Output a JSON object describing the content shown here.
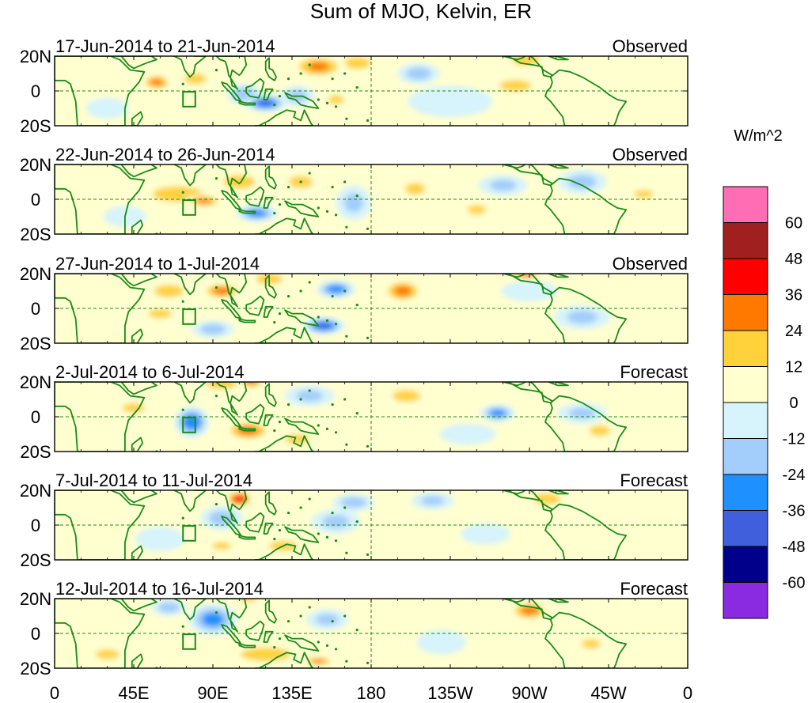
{
  "title": "Sum of MJO, Kelvin, ER",
  "units": "W/m^2",
  "colors": {
    "coast": "#1a8a1a",
    "frame": "#000000",
    "bins": [
      "#8a2be2",
      "#00008b",
      "#3f5fdc",
      "#1e90ff",
      "#a3cdfa",
      "#d7f3fb",
      "#ffffd0",
      "#ffd23c",
      "#ff7800",
      "#ff0000",
      "#a0201f",
      "#ff6eb4"
    ]
  },
  "colorbar": {
    "labels": [
      "60",
      "48",
      "36",
      "24",
      "12",
      "0",
      "-12",
      "-24",
      "-36",
      "-48",
      "-60"
    ]
  },
  "axes": {
    "lat_labels": [
      "20N",
      "0",
      "20S"
    ],
    "lon_labels": [
      "0",
      "45E",
      "90E",
      "135E",
      "180",
      "135W",
      "90W",
      "45W",
      "0"
    ],
    "lon_values": [
      0,
      45,
      90,
      135,
      180,
      225,
      270,
      315,
      360
    ]
  },
  "panels": [
    {
      "period": "17-Jun-2014 to 21-Jun-2014",
      "kind": "Observed",
      "features": [
        {
          "lon": 58,
          "lat": 5,
          "v": 28,
          "rx": 9,
          "ry": 5
        },
        {
          "lon": 80,
          "lat": 7,
          "v": 20,
          "rx": 10,
          "ry": 5
        },
        {
          "lon": 120,
          "lat": -7,
          "v": -40,
          "rx": 12,
          "ry": 5
        },
        {
          "lon": 108,
          "lat": -2,
          "v": -24,
          "rx": 10,
          "ry": 6
        },
        {
          "lon": 150,
          "lat": 14,
          "v": 26,
          "rx": 16,
          "ry": 7
        },
        {
          "lon": 172,
          "lat": 16,
          "v": 16,
          "rx": 14,
          "ry": 6
        },
        {
          "lon": 207,
          "lat": 10,
          "v": -18,
          "rx": 12,
          "ry": 6
        },
        {
          "lon": 268,
          "lat": 18,
          "v": 24,
          "rx": 12,
          "ry": 5
        },
        {
          "lon": 262,
          "lat": 3,
          "v": 22,
          "rx": 14,
          "ry": 5
        },
        {
          "lon": 138,
          "lat": -3,
          "v": -16,
          "rx": 10,
          "ry": 6
        },
        {
          "lon": 225,
          "lat": -6,
          "v": -10,
          "rx": 24,
          "ry": 9
        },
        {
          "lon": 160,
          "lat": -5,
          "v": 14,
          "rx": 8,
          "ry": 5
        },
        {
          "lon": 30,
          "lat": -10,
          "v": -12,
          "rx": 12,
          "ry": 6
        }
      ]
    },
    {
      "period": "22-Jun-2014 to 26-Jun-2014",
      "kind": "Observed",
      "features": [
        {
          "lon": 70,
          "lat": 3,
          "v": 22,
          "rx": 22,
          "ry": 7
        },
        {
          "lon": 85,
          "lat": -1,
          "v": 26,
          "rx": 11,
          "ry": 4
        },
        {
          "lon": 115,
          "lat": -8,
          "v": -30,
          "rx": 12,
          "ry": 5
        },
        {
          "lon": 105,
          "lat": 10,
          "v": 22,
          "rx": 14,
          "ry": 6
        },
        {
          "lon": 140,
          "lat": 10,
          "v": 16,
          "rx": 12,
          "ry": 6
        },
        {
          "lon": 170,
          "lat": -2,
          "v": -14,
          "rx": 10,
          "ry": 10
        },
        {
          "lon": 205,
          "lat": 6,
          "v": 16,
          "rx": 10,
          "ry": 6
        },
        {
          "lon": 255,
          "lat": 8,
          "v": -14,
          "rx": 14,
          "ry": 6
        },
        {
          "lon": 240,
          "lat": -6,
          "v": 14,
          "rx": 10,
          "ry": 5
        },
        {
          "lon": 300,
          "lat": 10,
          "v": -16,
          "rx": 14,
          "ry": 7
        },
        {
          "lon": 335,
          "lat": 3,
          "v": 16,
          "rx": 10,
          "ry": 4
        },
        {
          "lon": 40,
          "lat": -10,
          "v": -12,
          "rx": 12,
          "ry": 6
        }
      ]
    },
    {
      "period": "27-Jun-2014 to 1-Jul-2014",
      "kind": "Observed",
      "features": [
        {
          "lon": 95,
          "lat": 10,
          "v": 30,
          "rx": 12,
          "ry": 5
        },
        {
          "lon": 65,
          "lat": 10,
          "v": 18,
          "rx": 14,
          "ry": 6
        },
        {
          "lon": 60,
          "lat": -3,
          "v": 24,
          "rx": 10,
          "ry": 4
        },
        {
          "lon": 160,
          "lat": 11,
          "v": -34,
          "rx": 11,
          "ry": 5
        },
        {
          "lon": 153,
          "lat": -10,
          "v": -40,
          "rx": 12,
          "ry": 5
        },
        {
          "lon": 198,
          "lat": 10,
          "v": 28,
          "rx": 12,
          "ry": 7
        },
        {
          "lon": 122,
          "lat": 17,
          "v": 20,
          "rx": 12,
          "ry": 5
        },
        {
          "lon": 90,
          "lat": -12,
          "v": -18,
          "rx": 12,
          "ry": 5
        },
        {
          "lon": 45,
          "lat": -15,
          "v": 12,
          "rx": 12,
          "ry": 5
        },
        {
          "lon": 270,
          "lat": 10,
          "v": -12,
          "rx": 16,
          "ry": 6
        },
        {
          "lon": 300,
          "lat": -5,
          "v": -14,
          "rx": 16,
          "ry": 7
        },
        {
          "lon": 268,
          "lat": 20,
          "v": 28,
          "rx": 10,
          "ry": 4
        }
      ]
    },
    {
      "period": "2-Jul-2014 to 6-Jul-2014",
      "kind": "Forecast",
      "features": [
        {
          "lon": 78,
          "lat": -3,
          "v": -36,
          "rx": 10,
          "ry": 9
        },
        {
          "lon": 110,
          "lat": -8,
          "v": 30,
          "rx": 14,
          "ry": 6
        },
        {
          "lon": 95,
          "lat": 19,
          "v": 20,
          "rx": 14,
          "ry": 5
        },
        {
          "lon": 112,
          "lat": 20,
          "v": 28,
          "rx": 8,
          "ry": 4
        },
        {
          "lon": 138,
          "lat": -13,
          "v": 16,
          "rx": 12,
          "ry": 5
        },
        {
          "lon": 145,
          "lat": 12,
          "v": -14,
          "rx": 14,
          "ry": 6
        },
        {
          "lon": 200,
          "lat": 12,
          "v": 16,
          "rx": 14,
          "ry": 6
        },
        {
          "lon": 252,
          "lat": 2,
          "v": -30,
          "rx": 10,
          "ry": 5
        },
        {
          "lon": 300,
          "lat": 2,
          "v": -14,
          "rx": 14,
          "ry": 6
        },
        {
          "lon": 310,
          "lat": -8,
          "v": 18,
          "rx": 10,
          "ry": 5
        },
        {
          "lon": 45,
          "lat": 5,
          "v": 14,
          "rx": 12,
          "ry": 5
        },
        {
          "lon": 235,
          "lat": -10,
          "v": -12,
          "rx": 16,
          "ry": 6
        }
      ]
    },
    {
      "period": "7-Jul-2014 to 11-Jul-2014",
      "kind": "Forecast",
      "features": [
        {
          "lon": 105,
          "lat": 15,
          "v": 44,
          "rx": 8,
          "ry": 5
        },
        {
          "lon": 95,
          "lat": 4,
          "v": -18,
          "rx": 12,
          "ry": 7
        },
        {
          "lon": 130,
          "lat": -12,
          "v": 16,
          "rx": 14,
          "ry": 5
        },
        {
          "lon": 160,
          "lat": 2,
          "v": -14,
          "rx": 14,
          "ry": 7
        },
        {
          "lon": 170,
          "lat": 13,
          "v": -18,
          "rx": 12,
          "ry": 5
        },
        {
          "lon": 215,
          "lat": 14,
          "v": -14,
          "rx": 12,
          "ry": 5
        },
        {
          "lon": 280,
          "lat": 15,
          "v": 22,
          "rx": 12,
          "ry": 5
        },
        {
          "lon": 320,
          "lat": -10,
          "v": 12,
          "rx": 12,
          "ry": 6
        },
        {
          "lon": 60,
          "lat": -8,
          "v": -12,
          "rx": 14,
          "ry": 7
        },
        {
          "lon": 95,
          "lat": -12,
          "v": 14,
          "rx": 10,
          "ry": 4
        },
        {
          "lon": 245,
          "lat": -5,
          "v": -10,
          "rx": 14,
          "ry": 6
        }
      ]
    },
    {
      "period": "12-Jul-2014 to 16-Jul-2014",
      "kind": "Forecast",
      "features": [
        {
          "lon": 90,
          "lat": 8,
          "v": -30,
          "rx": 14,
          "ry": 9
        },
        {
          "lon": 120,
          "lat": -12,
          "v": 22,
          "rx": 22,
          "ry": 6
        },
        {
          "lon": 150,
          "lat": -16,
          "v": 26,
          "rx": 10,
          "ry": 3
        },
        {
          "lon": 270,
          "lat": 13,
          "v": 28,
          "rx": 12,
          "ry": 6
        },
        {
          "lon": 65,
          "lat": 15,
          "v": -18,
          "rx": 10,
          "ry": 5
        },
        {
          "lon": 110,
          "lat": 20,
          "v": 22,
          "rx": 8,
          "ry": 3
        },
        {
          "lon": 180,
          "lat": 6,
          "v": 12,
          "rx": 14,
          "ry": 5
        },
        {
          "lon": 220,
          "lat": -5,
          "v": -10,
          "rx": 14,
          "ry": 7
        },
        {
          "lon": 305,
          "lat": -6,
          "v": 14,
          "rx": 10,
          "ry": 5
        },
        {
          "lon": 30,
          "lat": -12,
          "v": 16,
          "rx": 12,
          "ry": 5
        },
        {
          "lon": 155,
          "lat": 8,
          "v": -14,
          "rx": 12,
          "ry": 6
        }
      ]
    }
  ]
}
